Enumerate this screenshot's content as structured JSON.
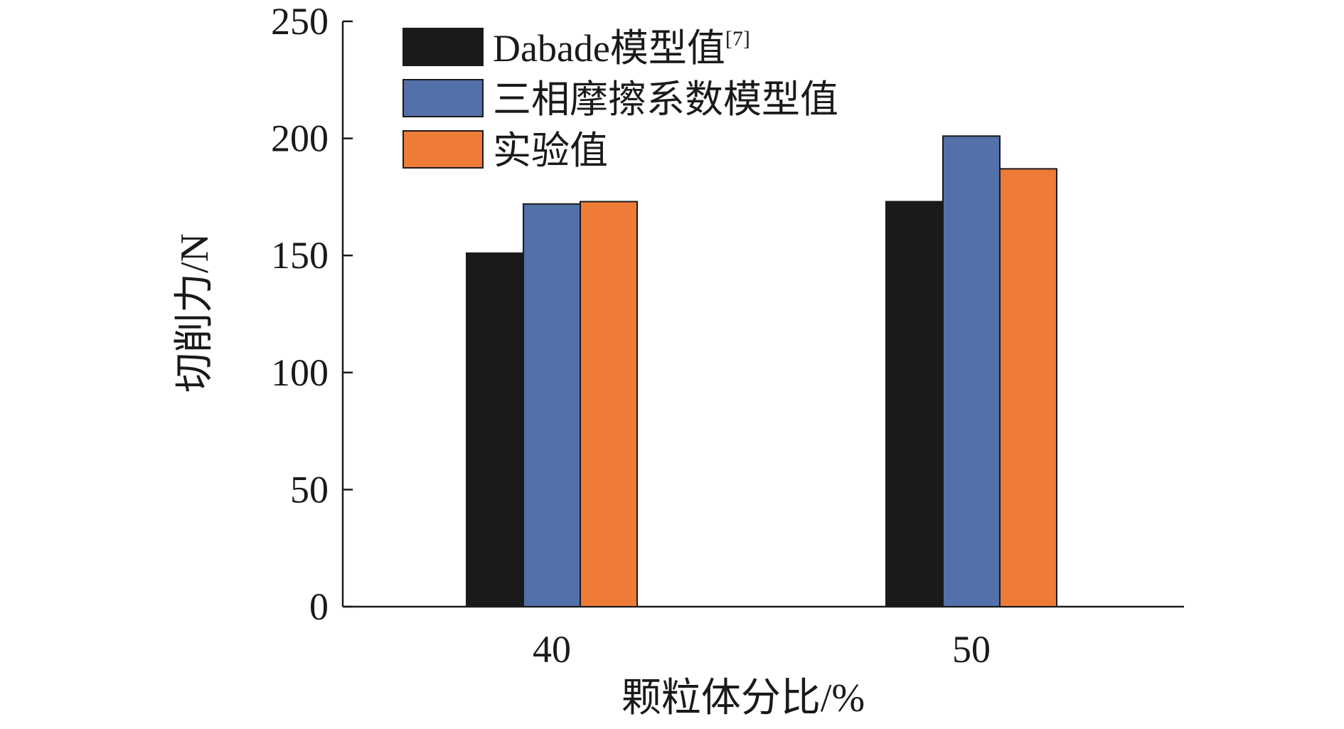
{
  "chart_data": {
    "type": "bar",
    "title": "",
    "xlabel": "颗粒体分比/%",
    "ylabel": "切削力/N",
    "categories": [
      "40",
      "50"
    ],
    "series": [
      {
        "name": "Dabade模型值",
        "superscript": "[7]",
        "color": "#1a1a1a",
        "values": [
          151,
          173
        ]
      },
      {
        "name": "三相摩擦系数模型值",
        "superscript": "",
        "color": "#5470a9",
        "values": [
          172,
          201
        ]
      },
      {
        "name": "实验值",
        "superscript": "",
        "color": "#ef7b39",
        "values": [
          173,
          187
        ]
      }
    ],
    "ylim": [
      0,
      250
    ],
    "yticks": [
      0,
      50,
      100,
      150,
      200,
      250
    ],
    "legend_position": "top-left",
    "grid": false
  }
}
